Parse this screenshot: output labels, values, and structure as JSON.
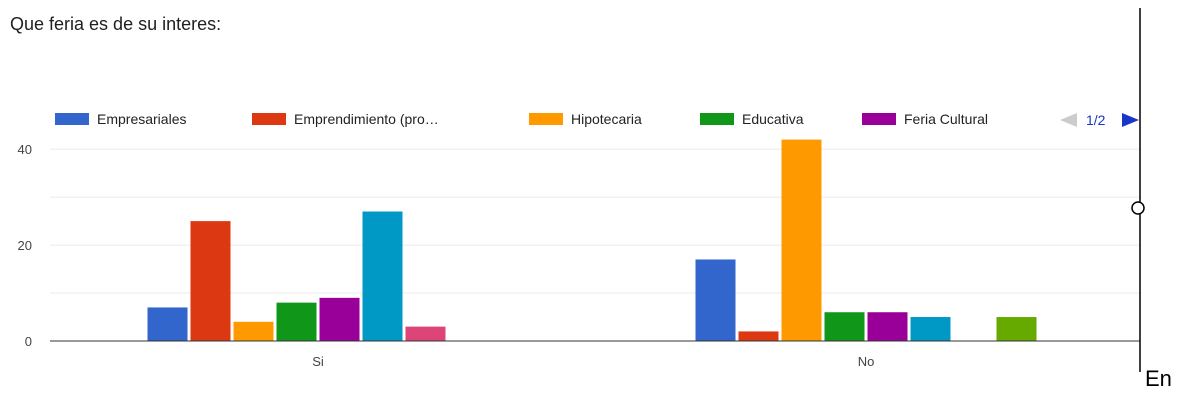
{
  "title": "Que feria es de su interes:",
  "trailing_text": "En",
  "legend_pager": {
    "label": "1/2",
    "prev_icon": "triangle-left-icon",
    "next_icon": "triangle-right-icon",
    "prev_color": "#cccccc",
    "next_color": "#1a35c8"
  },
  "chart_data": {
    "type": "bar",
    "title": "Que feria es de su interes:",
    "categories": [
      "Si",
      "No"
    ],
    "y_ticks": [
      0,
      20,
      40
    ],
    "ylim": [
      0,
      44
    ],
    "grid": true,
    "legend_position": "top",
    "series": [
      {
        "name": "Empresariales",
        "color": "#3366cc",
        "values": [
          7,
          17
        ],
        "in_legend": true
      },
      {
        "name": "Emprendimiento (pro…",
        "color": "#dc3912",
        "values": [
          25,
          2
        ],
        "in_legend": true
      },
      {
        "name": "Hipotecaria",
        "color": "#ff9900",
        "values": [
          4,
          42
        ],
        "in_legend": true
      },
      {
        "name": "Educativa",
        "color": "#109618",
        "values": [
          8,
          6
        ],
        "in_legend": true
      },
      {
        "name": "Feria Cultural",
        "color": "#990099",
        "values": [
          9,
          6
        ],
        "in_legend": true
      },
      {
        "color": "#0099c6",
        "values": [
          27,
          5
        ],
        "in_legend": false
      },
      {
        "color": "#dd4477",
        "values": [
          3,
          0
        ],
        "in_legend": false
      },
      {
        "color": "#66aa00",
        "values": [
          0,
          5
        ],
        "in_legend": false
      }
    ]
  }
}
